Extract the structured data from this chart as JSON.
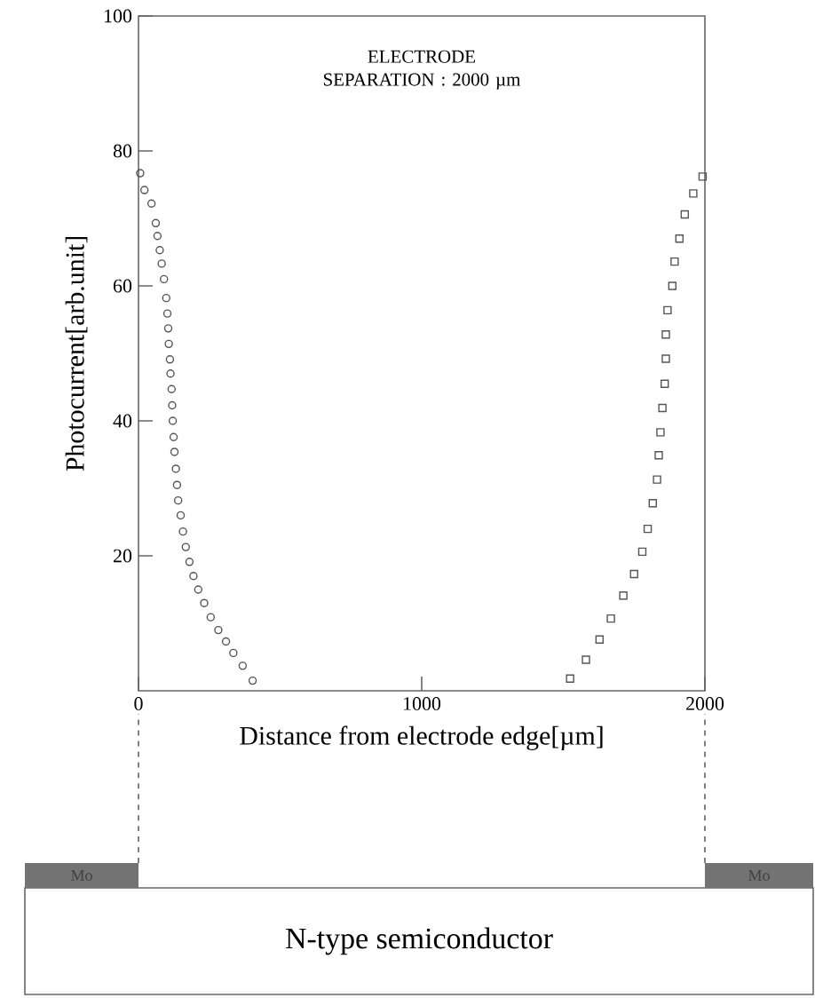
{
  "chart_data": {
    "type": "scatter",
    "xlabel": "Distance from electrode edge[µm]",
    "ylabel": "Photocurrent[arb.unit]",
    "annotations": [
      "ELECTRODE SEPARATION : 2000 µm",
      "Mo",
      "Mo",
      "N-type semiconductor"
    ],
    "xlim": [
      0,
      2000
    ],
    "ylim": [
      0,
      100
    ],
    "xticks": [
      0,
      1000,
      2000
    ],
    "yticks": [
      20,
      40,
      60,
      80,
      100
    ],
    "series": [
      {
        "color": "#555555",
        "marker": "circle",
        "x": [
          6,
          21,
          46,
          61,
          67,
          75,
          82,
          90,
          98,
          102,
          105,
          107,
          111,
          113,
          117,
          119,
          121,
          124,
          127,
          132,
          136,
          140,
          149,
          157,
          167,
          180,
          194,
          211,
          232,
          255,
          282,
          309,
          335,
          368,
          403
        ],
        "values": [
          76.7,
          74.2,
          72.2,
          69.3,
          67.4,
          65.3,
          63.3,
          61.0,
          58.2,
          55.9,
          53.7,
          51.4,
          49.1,
          47.0,
          44.7,
          42.3,
          40.0,
          37.6,
          35.4,
          32.9,
          30.5,
          28.2,
          26.0,
          23.6,
          21.3,
          19.1,
          17.0,
          15.0,
          13.0,
          10.9,
          9.0,
          7.3,
          5.6,
          3.7,
          1.5
        ]
      },
      {
        "color": "#555555",
        "marker": "square",
        "x": [
          1992,
          1959,
          1929,
          1910,
          1893,
          1885,
          1868,
          1862,
          1862,
          1858,
          1850,
          1843,
          1837,
          1831,
          1816,
          1798,
          1779,
          1750,
          1712,
          1668,
          1628,
          1580,
          1524
        ],
        "values": [
          76.2,
          73.7,
          70.6,
          67.0,
          63.6,
          60.0,
          56.4,
          52.8,
          49.2,
          45.5,
          41.9,
          38.3,
          34.9,
          31.3,
          27.8,
          24.0,
          20.6,
          17.3,
          14.1,
          10.7,
          7.6,
          4.6,
          1.8
        ]
      }
    ]
  }
}
